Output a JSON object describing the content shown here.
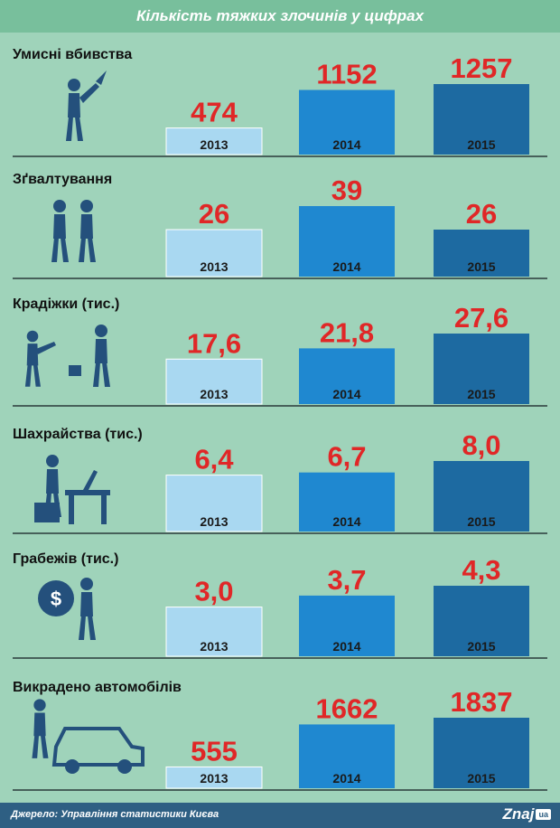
{
  "title": "Кількість тяжких злочинів у цифрах",
  "source": "Джерело: Управління статистики Києва",
  "logo": {
    "text": "Znaj",
    "badge": "ua"
  },
  "colors": {
    "background": "#9fd3ba",
    "header": "#78bf9c",
    "bar_2013": "#a9d8f1",
    "bar_2014": "#1f88d0",
    "bar_2015": "#1d6aa1",
    "value_label": "#e02727",
    "footer": "#2e5f83"
  },
  "chart_data": [
    {
      "type": "bar",
      "title": "Умисні вбивства",
      "icon": "stabbing-figure-icon",
      "categories": [
        "2013",
        "2014",
        "2015"
      ],
      "values": [
        474,
        1152,
        1257
      ],
      "value_labels": [
        "474",
        "1152",
        "1257"
      ]
    },
    {
      "type": "bar",
      "title": "Зґвалтування",
      "icon": "two-figures-icon",
      "categories": [
        "2013",
        "2014",
        "2015"
      ],
      "values": [
        26,
        39,
        26
      ],
      "value_labels": [
        "26",
        "39",
        "26"
      ]
    },
    {
      "type": "bar",
      "title": "Крадіжки (тис.)",
      "icon": "bag-snatcher-icon",
      "categories": [
        "2013",
        "2014",
        "2015"
      ],
      "values": [
        17.6,
        21.8,
        27.6
      ],
      "value_labels": [
        "17,6",
        "21,8",
        "27,6"
      ]
    },
    {
      "type": "bar",
      "title": "Шахрайства (тис.)",
      "icon": "laptop-user-icon",
      "categories": [
        "2013",
        "2014",
        "2015"
      ],
      "values": [
        6.4,
        6.7,
        8.0
      ],
      "value_labels": [
        "6,4",
        "6,7",
        "8,0"
      ]
    },
    {
      "type": "bar",
      "title": "Грабежів  (тис.)",
      "icon": "thief-with-money-bag-icon",
      "categories": [
        "2013",
        "2014",
        "2015"
      ],
      "values": [
        3.0,
        3.7,
        4.3
      ],
      "value_labels": [
        "3,0",
        "3,7",
        "4,3"
      ]
    },
    {
      "type": "bar",
      "title": "Викрадено автомобілів",
      "icon": "car-thief-icon",
      "categories": [
        "2013",
        "2014",
        "2015"
      ],
      "values": [
        555,
        1662,
        1837
      ],
      "value_labels": [
        "555",
        "1662",
        "1837"
      ]
    }
  ]
}
